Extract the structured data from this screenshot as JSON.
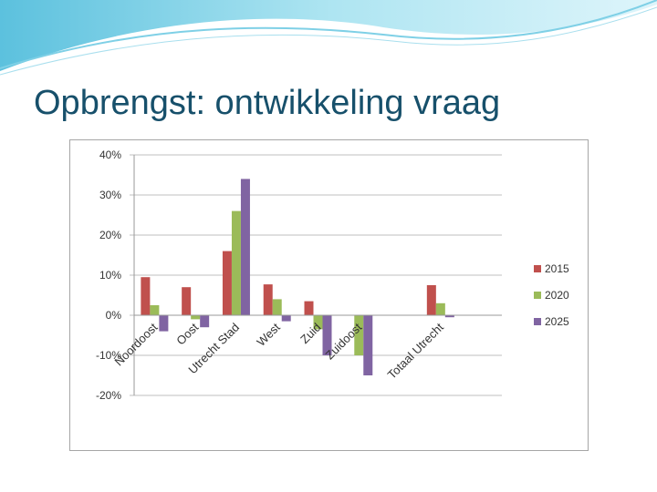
{
  "title": "Opbrengst: ontwikkeling vraag",
  "chart_data": {
    "type": "bar",
    "categories": [
      "Noordoost",
      "Oost",
      "Utrecht Stad",
      "West",
      "Zuid",
      "Zuidoost",
      null,
      "Totaal Utrecht",
      null
    ],
    "series": [
      {
        "name": "2015",
        "color": "#c0504d",
        "values": [
          9.5,
          7,
          16,
          7.7,
          3.5,
          0,
          null,
          7.5,
          null
        ]
      },
      {
        "name": "2020",
        "color": "#9bbb59",
        "values": [
          2.5,
          -1,
          26,
          4,
          -3.5,
          -10,
          null,
          3,
          null
        ]
      },
      {
        "name": "2025",
        "color": "#8064a2",
        "values": [
          -4,
          -3,
          34,
          -1.5,
          -10,
          -15,
          null,
          -0.5,
          null
        ]
      }
    ],
    "ylim": [
      -20,
      40
    ],
    "yticks": [
      {
        "value": -20,
        "label": "-20%"
      },
      {
        "value": -10,
        "label": "-10%"
      },
      {
        "value": 0,
        "label": "0%"
      },
      {
        "value": 10,
        "label": "10%"
      },
      {
        "value": 20,
        "label": "20%"
      },
      {
        "value": 30,
        "label": "30%"
      },
      {
        "value": 40,
        "label": "40%"
      }
    ],
    "grid": true,
    "legend": "right"
  }
}
